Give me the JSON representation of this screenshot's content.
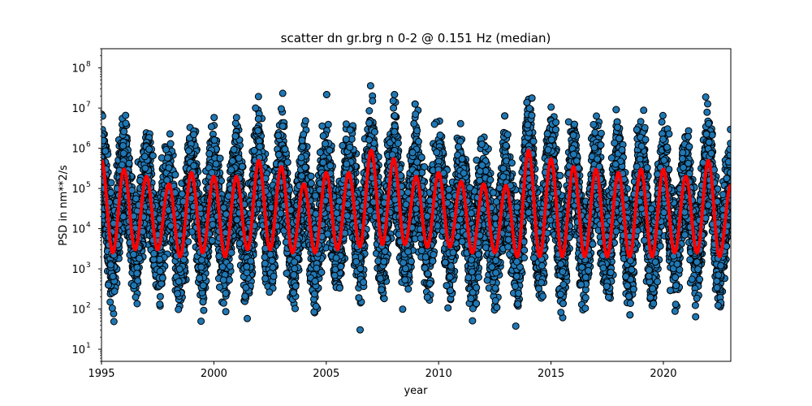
{
  "chart_data": {
    "type": "scatter",
    "title": "scatter dn gr.brg n 0-2 @ 0.151 Hz (median)",
    "xlabel": "year",
    "ylabel": "PSD in nm**2/s",
    "xlim": [
      1995,
      2023
    ],
    "ylim": [
      5,
      300000000
    ],
    "yscale": "log",
    "grid": false,
    "x_ticks": [
      {
        "value": 1995,
        "label": "1995"
      },
      {
        "value": 2000,
        "label": "2000"
      },
      {
        "value": 2005,
        "label": "2005"
      },
      {
        "value": 2010,
        "label": "2010"
      },
      {
        "value": 2015,
        "label": "2015"
      },
      {
        "value": 2020,
        "label": "2020"
      }
    ],
    "y_ticks": [
      {
        "value": 10,
        "base": "10",
        "exp": "1"
      },
      {
        "value": 100,
        "base": "10",
        "exp": "2"
      },
      {
        "value": 1000,
        "base": "10",
        "exp": "3"
      },
      {
        "value": 10000,
        "base": "10",
        "exp": "4"
      },
      {
        "value": 100000,
        "base": "10",
        "exp": "5"
      },
      {
        "value": 1000000,
        "base": "10",
        "exp": "6"
      },
      {
        "value": 10000000,
        "base": "10",
        "exp": "7"
      },
      {
        "value": 100000000,
        "base": "10",
        "exp": "8"
      }
    ],
    "series": [
      {
        "kind": "scatter",
        "color": "#1f77b4",
        "edge_color": "#000000",
        "seasonal_envelope": {
          "period_years": 1,
          "peak_phase": 0.02,
          "min_median": 2000,
          "points_per_year": 40,
          "scatter_decades": 0.9
        }
      },
      {
        "kind": "line",
        "color": "#ff0000",
        "peaks": [
          {
            "x": 1996.0,
            "y": 300000
          },
          {
            "x": 1997.0,
            "y": 200000
          },
          {
            "x": 1998.0,
            "y": 130000
          },
          {
            "x": 1999.0,
            "y": 250000
          },
          {
            "x": 2000.0,
            "y": 200000
          },
          {
            "x": 2001.0,
            "y": 200000
          },
          {
            "x": 2002.0,
            "y": 500000
          },
          {
            "x": 2003.0,
            "y": 350000
          },
          {
            "x": 2004.0,
            "y": 130000
          },
          {
            "x": 2005.0,
            "y": 250000
          },
          {
            "x": 2006.0,
            "y": 250000
          },
          {
            "x": 2007.0,
            "y": 900000
          },
          {
            "x": 2008.0,
            "y": 550000
          },
          {
            "x": 2009.0,
            "y": 200000
          },
          {
            "x": 2010.0,
            "y": 250000
          },
          {
            "x": 2011.0,
            "y": 150000
          },
          {
            "x": 2012.0,
            "y": 130000
          },
          {
            "x": 2013.0,
            "y": 120000
          },
          {
            "x": 2014.0,
            "y": 900000
          },
          {
            "x": 2015.0,
            "y": 550000
          },
          {
            "x": 2016.0,
            "y": 350000
          },
          {
            "x": 2017.0,
            "y": 300000
          },
          {
            "x": 2018.0,
            "y": 250000
          },
          {
            "x": 2019.0,
            "y": 300000
          },
          {
            "x": 2020.0,
            "y": 300000
          },
          {
            "x": 2021.0,
            "y": 200000
          },
          {
            "x": 2022.0,
            "y": 500000
          }
        ],
        "troughs": [
          {
            "x": 1995.5,
            "y": 2500
          },
          {
            "x": 1996.5,
            "y": 3000
          },
          {
            "x": 1997.5,
            "y": 3000
          },
          {
            "x": 1998.5,
            "y": 2000
          },
          {
            "x": 1999.5,
            "y": 2500
          },
          {
            "x": 2000.5,
            "y": 2000
          },
          {
            "x": 2001.5,
            "y": 3000
          },
          {
            "x": 2002.5,
            "y": 3000
          },
          {
            "x": 2003.5,
            "y": 2500
          },
          {
            "x": 2004.5,
            "y": 2500
          },
          {
            "x": 2005.5,
            "y": 3000
          },
          {
            "x": 2006.5,
            "y": 3500
          },
          {
            "x": 2007.5,
            "y": 4000
          },
          {
            "x": 2008.5,
            "y": 4000
          },
          {
            "x": 2009.5,
            "y": 3500
          },
          {
            "x": 2010.5,
            "y": 3500
          },
          {
            "x": 2011.5,
            "y": 2500
          },
          {
            "x": 2012.5,
            "y": 2500
          },
          {
            "x": 2013.5,
            "y": 2000
          },
          {
            "x": 2014.5,
            "y": 2000
          },
          {
            "x": 2015.5,
            "y": 2000
          },
          {
            "x": 2016.5,
            "y": 2000
          },
          {
            "x": 2017.5,
            "y": 2000
          },
          {
            "x": 2018.5,
            "y": 2000
          },
          {
            "x": 2019.5,
            "y": 2000
          },
          {
            "x": 2020.5,
            "y": 2500
          },
          {
            "x": 2021.5,
            "y": 2500
          },
          {
            "x": 2022.5,
            "y": 2000
          }
        ],
        "end_value": 120000
      }
    ]
  }
}
